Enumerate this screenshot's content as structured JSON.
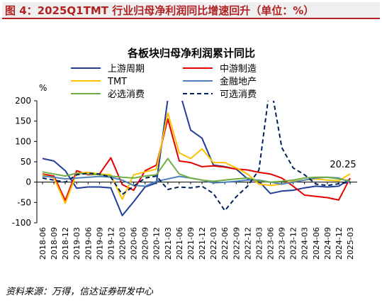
{
  "figure_title": "图 4：2025Q1TMT 行业归母净利润同比增速回升（单位：%）",
  "source": "资料来源：万得，信达证券研发中心",
  "colors": {
    "title": "#b22222",
    "cycle": "#1f3f99",
    "midstream": "#e60000",
    "tmt": "#ffc000",
    "finance": "#4f81bd",
    "consumer_staples": "#70ad47",
    "consumer_disc": "#00205b"
  },
  "chart_data": {
    "type": "line",
    "title": "各板块归母净利润累计同比",
    "ylabel": "%",
    "ylim": [
      -100,
      200
    ],
    "yticks": [
      -100,
      -50,
      0,
      50,
      100,
      150,
      200
    ],
    "categories": [
      "2018-06",
      "2018-09",
      "2018-12",
      "2019-03",
      "2019-06",
      "2019-09",
      "2019-12",
      "2020-03",
      "2020-06",
      "2020-09",
      "2020-12",
      "2021-03",
      "2021-06",
      "2021-09",
      "2021-12",
      "2022-03",
      "2022-06",
      "2022-09",
      "2022-12",
      "2023-03",
      "2023-06",
      "2023-09",
      "2023-12",
      "2024-03",
      "2024-06",
      "2024-09",
      "2024-12",
      "2025-03"
    ],
    "annotation": "20.25",
    "series": [
      {
        "name": "上游周期",
        "color": "#1f3f99",
        "dash": false,
        "values": [
          58,
          52,
          28,
          -15,
          -12,
          -12,
          -14,
          -82,
          -48,
          -12,
          -2,
          205,
          225,
          128,
          108,
          42,
          38,
          32,
          8,
          2,
          -28,
          -22,
          -20,
          -14,
          -10,
          -12,
          -10,
          8
        ]
      },
      {
        "name": "中游制造",
        "color": "#e60000",
        "dash": false,
        "values": [
          20,
          15,
          -45,
          28,
          18,
          20,
          60,
          -6,
          -20,
          28,
          42,
          155,
          52,
          48,
          38,
          40,
          37,
          32,
          30,
          24,
          20,
          10,
          -10,
          -32,
          -35,
          -38,
          -44,
          10
        ]
      },
      {
        "name": "TMT",
        "color": "#ffc000",
        "dash": false,
        "values": [
          18,
          10,
          -52,
          22,
          24,
          20,
          18,
          -42,
          18,
          25,
          32,
          170,
          72,
          58,
          82,
          48,
          48,
          35,
          20,
          -5,
          -8,
          -5,
          2,
          5,
          8,
          5,
          3,
          20.25
        ]
      },
      {
        "name": "金融地产",
        "color": "#4f81bd",
        "dash": false,
        "values": [
          15,
          12,
          8,
          10,
          12,
          14,
          12,
          5,
          -8,
          -10,
          2,
          8,
          14,
          10,
          5,
          -2,
          0,
          2,
          5,
          5,
          0,
          -5,
          0,
          5,
          10,
          12,
          10,
          0
        ]
      },
      {
        "name": "必选消费",
        "color": "#70ad47",
        "dash": false,
        "values": [
          25,
          20,
          15,
          22,
          20,
          18,
          15,
          12,
          10,
          15,
          18,
          58,
          20,
          10,
          5,
          2,
          5,
          8,
          10,
          3,
          0,
          2,
          5,
          10,
          12,
          12,
          8,
          3
        ]
      },
      {
        "name": "可选消费",
        "color": "#00205b",
        "dash": true,
        "values": [
          10,
          5,
          0,
          18,
          22,
          20,
          12,
          -30,
          -10,
          10,
          15,
          -18,
          -12,
          -14,
          -10,
          -28,
          -70,
          -36,
          -10,
          30,
          245,
          85,
          35,
          18,
          -5,
          -8,
          -4,
          0
        ]
      }
    ]
  }
}
